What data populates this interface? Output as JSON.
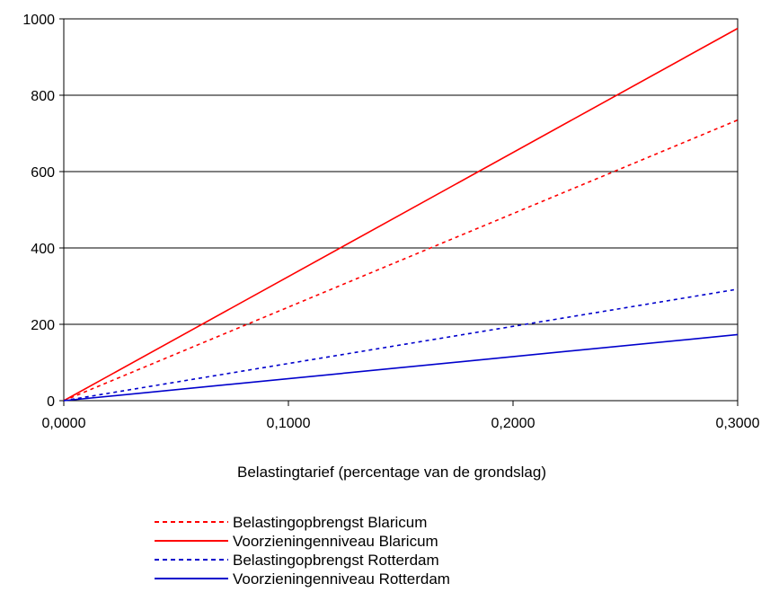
{
  "chart_data": {
    "type": "line",
    "title": "",
    "xlabel": "Belastingtarief (percentage van de grondslag)",
    "ylabel": "",
    "xlim": [
      0,
      0.3
    ],
    "ylim": [
      0,
      1000
    ],
    "x_ticks": [
      "0,0000",
      "0,1000",
      "0,2000",
      "0,3000"
    ],
    "y_ticks": [
      "0",
      "200",
      "400",
      "600",
      "800",
      "1000"
    ],
    "grid": "horizontal",
    "legend_position": "bottom",
    "series": [
      {
        "name": "Belastingopbrengst Blaricum",
        "color": "#ff0000",
        "style": "dotted",
        "x": [
          0,
          0.3
        ],
        "y": [
          0,
          735
        ]
      },
      {
        "name": "Voorzieningenniveau Blaricum",
        "color": "#ff0000",
        "style": "solid",
        "x": [
          0,
          0.3
        ],
        "y": [
          0,
          975
        ]
      },
      {
        "name": "Belastingopbrengst Rotterdam",
        "color": "#0000cc",
        "style": "dotted",
        "x": [
          0,
          0.3
        ],
        "y": [
          0,
          292
        ]
      },
      {
        "name": "Voorzieningenniveau Rotterdam",
        "color": "#0000cc",
        "style": "solid",
        "x": [
          0,
          0.3
        ],
        "y": [
          0,
          173
        ]
      }
    ]
  }
}
